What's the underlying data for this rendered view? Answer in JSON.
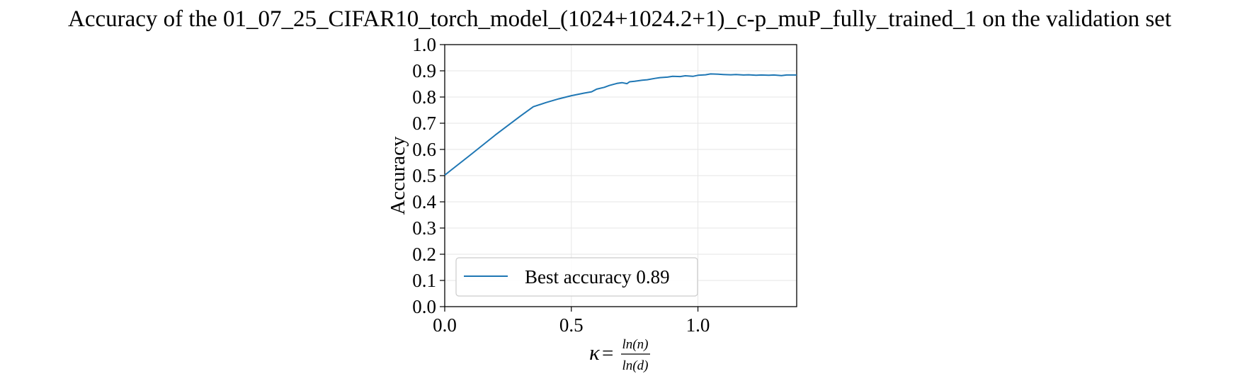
{
  "chart_data": {
    "type": "line",
    "title": "Accuracy of the 01_07_25_CIFAR10_torch_model_(1024+1024.2+1)_c-p_muP_fully_trained_1 on the validation set",
    "ylabel": "Accuracy",
    "xlabel": {
      "symbol": "κ",
      "equals": "=",
      "numerator": "ln(n)",
      "denominator": "ln(d)"
    },
    "xlim": [
      0.0,
      1.39
    ],
    "ylim": [
      0.0,
      1.0
    ],
    "x_ticks": [
      0.0,
      0.5,
      1.0
    ],
    "x_tick_labels": [
      "0.0",
      "0.5",
      "1.0"
    ],
    "y_ticks": [
      0.0,
      0.1,
      0.2,
      0.3,
      0.4,
      0.5,
      0.6,
      0.7,
      0.8,
      0.9,
      1.0
    ],
    "y_tick_labels": [
      "0.0",
      "0.1",
      "0.2",
      "0.3",
      "0.4",
      "0.5",
      "0.6",
      "0.7",
      "0.8",
      "0.9",
      "1.0"
    ],
    "grid": true,
    "legend_position": "lower-left",
    "series": [
      {
        "name": "Best accuracy 0.89",
        "color": "#1f77b4",
        "x": [
          0.0,
          0.1,
          0.2,
          0.3,
          0.35,
          0.4,
          0.45,
          0.5,
          0.55,
          0.58,
          0.6,
          0.63,
          0.65,
          0.68,
          0.7,
          0.72,
          0.73,
          0.75,
          0.78,
          0.8,
          0.83,
          0.85,
          0.88,
          0.9,
          0.93,
          0.95,
          0.98,
          1.0,
          1.03,
          1.05,
          1.08,
          1.1,
          1.13,
          1.15,
          1.18,
          1.2,
          1.23,
          1.25,
          1.28,
          1.3,
          1.33,
          1.35,
          1.39
        ],
        "y": [
          0.502,
          0.578,
          0.655,
          0.728,
          0.763,
          0.779,
          0.793,
          0.805,
          0.815,
          0.82,
          0.83,
          0.837,
          0.844,
          0.852,
          0.855,
          0.851,
          0.858,
          0.86,
          0.864,
          0.866,
          0.871,
          0.874,
          0.876,
          0.879,
          0.878,
          0.881,
          0.879,
          0.883,
          0.885,
          0.888,
          0.887,
          0.886,
          0.885,
          0.886,
          0.884,
          0.885,
          0.883,
          0.884,
          0.883,
          0.884,
          0.882,
          0.884,
          0.884
        ]
      }
    ]
  }
}
